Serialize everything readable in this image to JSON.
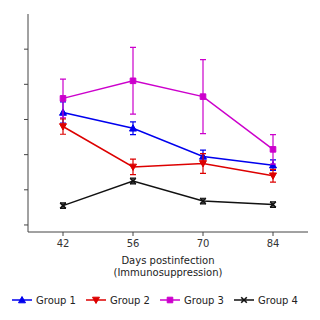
{
  "chart_data": {
    "type": "line",
    "x": [
      42,
      56,
      70,
      84
    ],
    "xlabel": "Days postinfection\n(Immunosuppression)",
    "xlim": [
      35,
      91
    ],
    "xticks": [
      42,
      56,
      70,
      84
    ],
    "ylim": [
      80,
      700
    ],
    "yticks": [
      100,
      200,
      300,
      400,
      500,
      600
    ],
    "tick_labels": "x",
    "grid": false,
    "legend": "bottom",
    "series": [
      {
        "name": "Group 1",
        "color": "#0000ee",
        "marker": "triangle-up",
        "values": [
          420,
          375,
          295,
          270
        ],
        "errors": [
          30,
          18,
          18,
          15
        ]
      },
      {
        "name": "Group 2",
        "color": "#dd0000",
        "marker": "triangle-down",
        "values": [
          380,
          265,
          275,
          240
        ],
        "errors": [
          22,
          22,
          28,
          18
        ]
      },
      {
        "name": "Group 3",
        "color": "#cc00cc",
        "marker": "square",
        "values": [
          460,
          510,
          465,
          315
        ],
        "errors": [
          55,
          95,
          105,
          42
        ]
      },
      {
        "name": "Group 4",
        "color": "#111111",
        "marker": "x",
        "values": [
          155,
          225,
          168,
          158
        ],
        "errors": [
          8,
          8,
          8,
          8
        ]
      }
    ]
  }
}
